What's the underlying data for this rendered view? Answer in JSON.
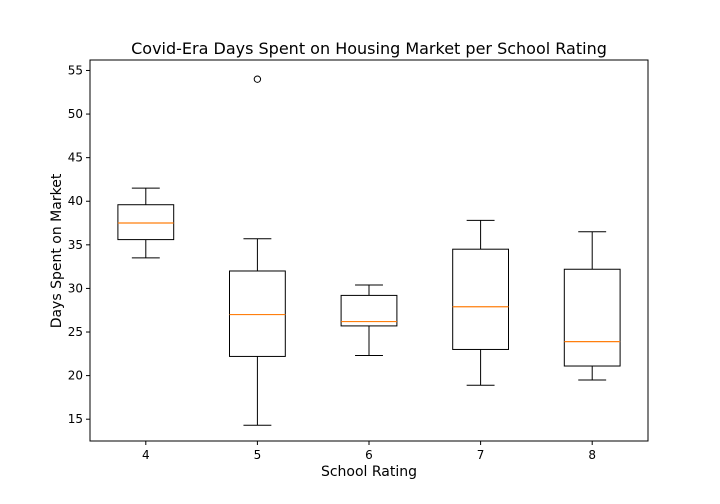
{
  "chart_data": {
    "type": "box",
    "title": "Covid-Era Days Spent on Housing Market per School Rating",
    "xlabel": "School Rating",
    "ylabel": "Days Spent on Market",
    "ylim": [
      12.5,
      56.2
    ],
    "yticks": [
      15,
      20,
      25,
      30,
      35,
      40,
      45,
      50,
      55
    ],
    "grid": false,
    "colors": {
      "box": "#000000",
      "median": "#ff7f0e",
      "background": "#ffffff"
    },
    "categories": [
      "4",
      "5",
      "6",
      "7",
      "8"
    ],
    "boxes": [
      {
        "label": "4",
        "whisker_low": 33.5,
        "q1": 35.6,
        "median": 37.5,
        "q3": 39.6,
        "whisker_high": 41.5,
        "outliers": []
      },
      {
        "label": "5",
        "whisker_low": 14.3,
        "q1": 22.2,
        "median": 27.0,
        "q3": 32.0,
        "whisker_high": 35.7,
        "outliers": [
          54.0
        ]
      },
      {
        "label": "6",
        "whisker_low": 22.3,
        "q1": 25.7,
        "median": 26.2,
        "q3": 29.2,
        "whisker_high": 30.4,
        "outliers": []
      },
      {
        "label": "7",
        "whisker_low": 18.9,
        "q1": 23.0,
        "median": 27.9,
        "q3": 34.5,
        "whisker_high": 37.8,
        "outliers": []
      },
      {
        "label": "8",
        "whisker_low": 19.5,
        "q1": 21.1,
        "median": 23.9,
        "q3": 32.2,
        "whisker_high": 36.5,
        "outliers": []
      }
    ]
  }
}
